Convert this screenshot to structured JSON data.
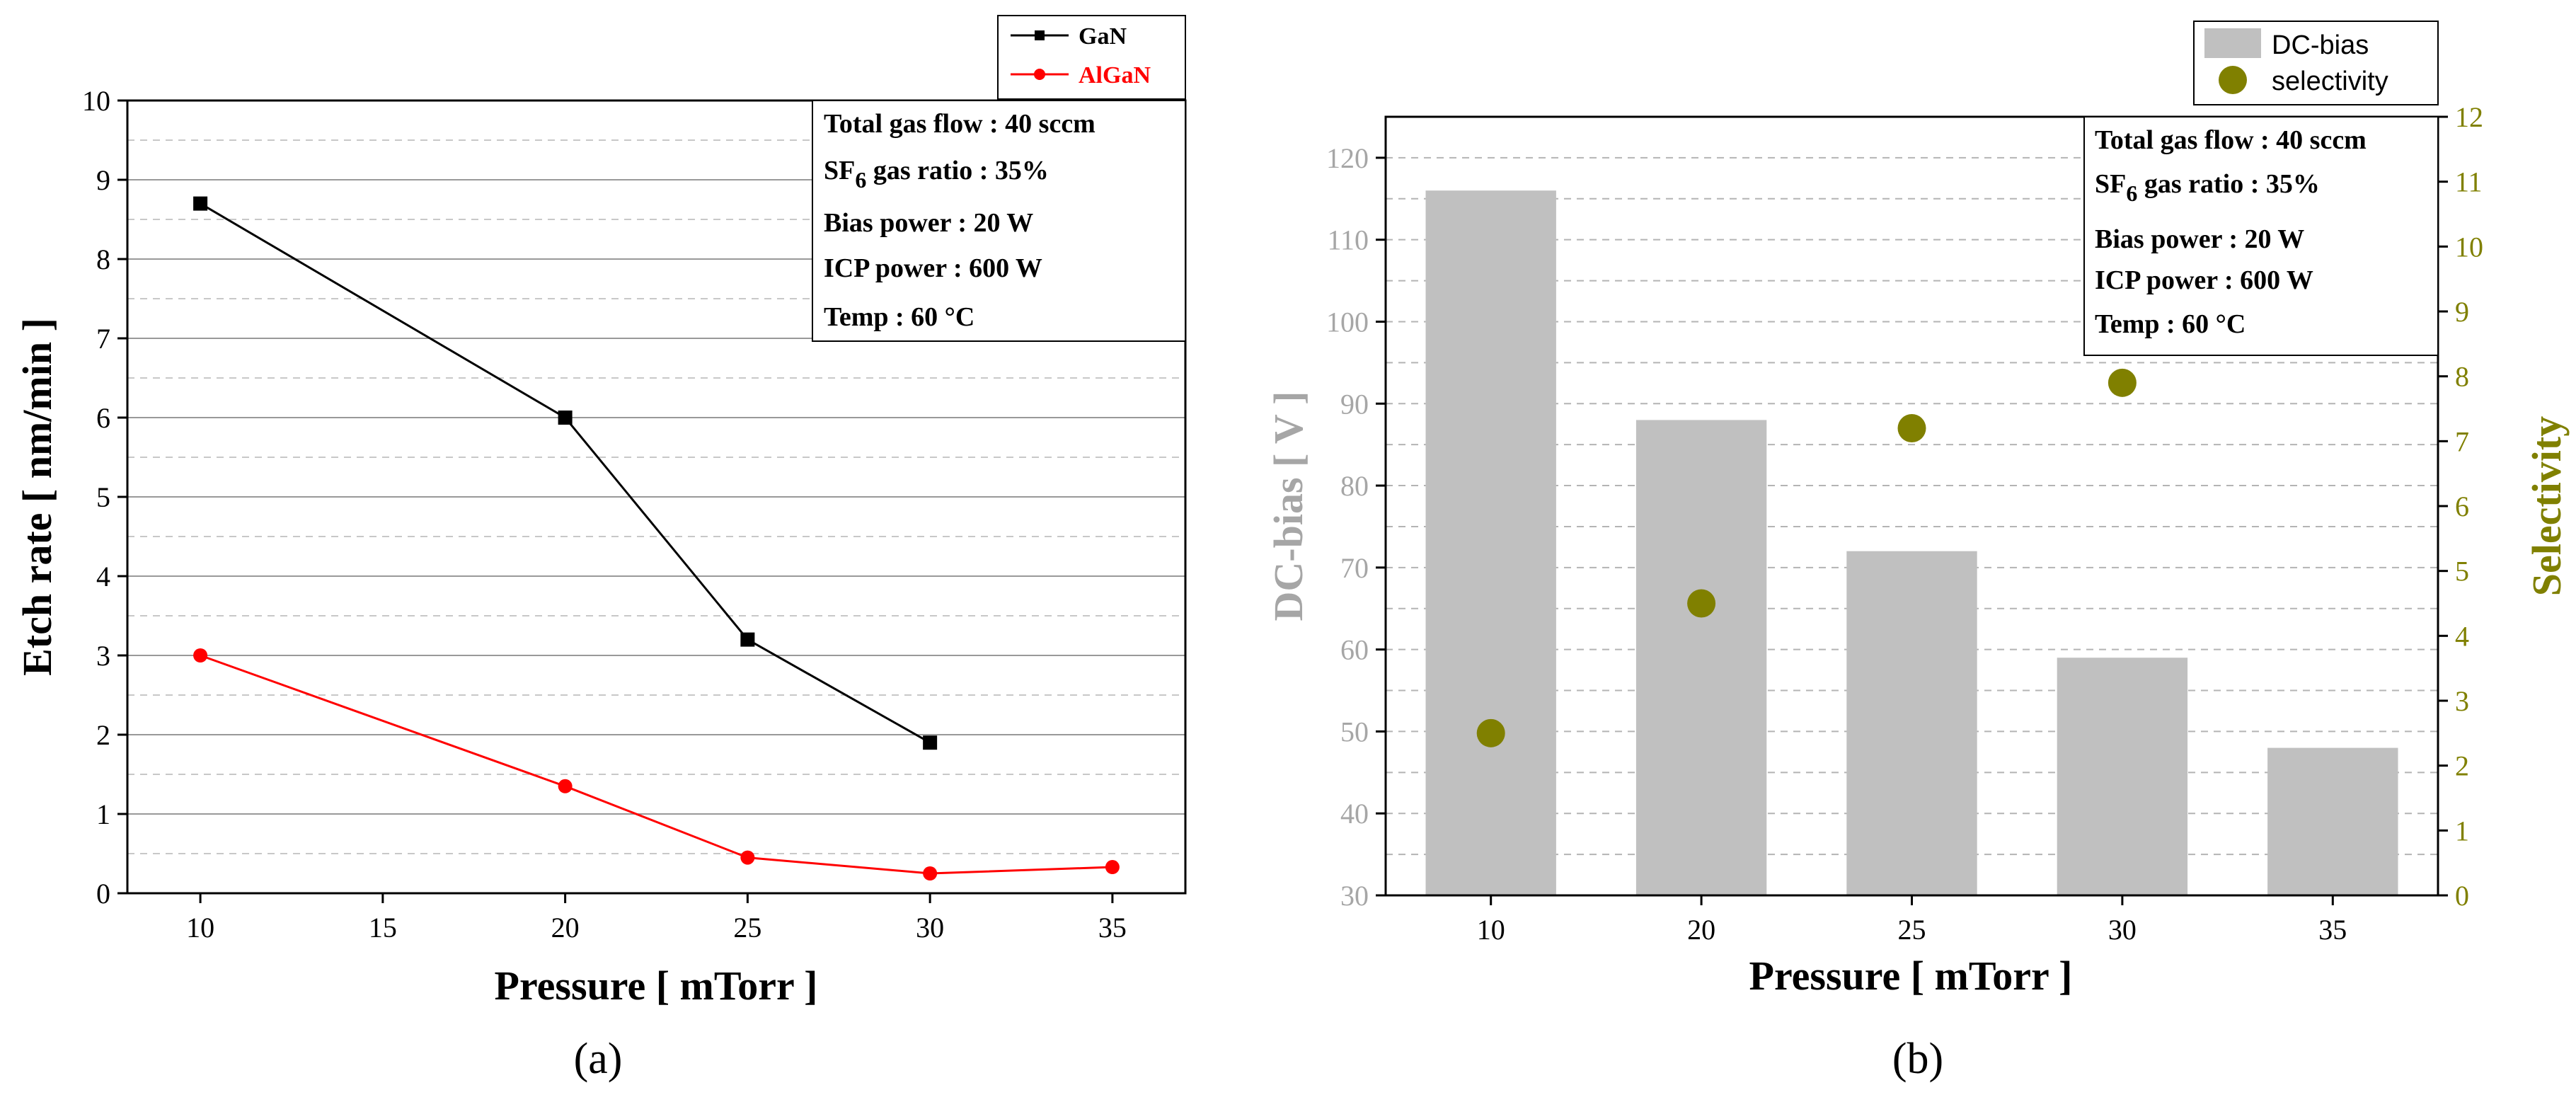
{
  "chart_data": [
    {
      "type": "line",
      "panel_label": "(a)",
      "xlabel": "Pressure [ mTorr ]",
      "ylabel": "Etch rate [ nm/min ]",
      "xlim": [
        8,
        37
      ],
      "ylim": [
        0,
        10
      ],
      "xticks": [
        "10",
        "15",
        "20",
        "25",
        "30",
        "35"
      ],
      "yticks": [
        "0",
        "1",
        "2",
        "3",
        "4",
        "5",
        "6",
        "7",
        "8",
        "9",
        "10"
      ],
      "grid": true,
      "legend_position": "top-right, outside",
      "series": [
        {
          "name": "GaN",
          "color": "#000000",
          "marker": "square",
          "x": [
            10,
            20,
            25,
            30
          ],
          "y": [
            8.7,
            6.0,
            3.2,
            1.9
          ]
        },
        {
          "name": "AlGaN",
          "color": "#ff0000",
          "marker": "circle",
          "x": [
            10,
            20,
            25,
            30,
            35
          ],
          "y": [
            3.0,
            1.35,
            0.45,
            0.25,
            0.33
          ]
        }
      ],
      "annotation": {
        "line1": "Total gas flow : 40 sccm",
        "line2_pre": "SF",
        "line2_sub": "6",
        "line2_post": " gas ratio : 35%",
        "line3": "Bias power : 20 W",
        "line4": "ICP power : 600 W",
        "line5": "Temp : 60 °C"
      }
    },
    {
      "type": "bar",
      "panel_label": "(b)",
      "xlabel": "Pressure [ mTorr ]",
      "ylabel": "DC-bias [ V ]",
      "y2label": "Selectivity",
      "categories": [
        "10",
        "20",
        "25",
        "30",
        "35"
      ],
      "ylim": [
        30,
        125
      ],
      "y2lim": [
        0,
        12
      ],
      "yticks": [
        "30",
        "40",
        "50",
        "60",
        "70",
        "80",
        "90",
        "100",
        "110",
        "120"
      ],
      "y2ticks": [
        "0",
        "1",
        "2",
        "3",
        "4",
        "5",
        "6",
        "7",
        "8",
        "9",
        "10",
        "11",
        "12"
      ],
      "grid": true,
      "legend_position": "top-right, outside",
      "series": [
        {
          "name": "DC-bias",
          "kind": "bar",
          "axis": "left",
          "color": "#c0c0c0",
          "values": [
            116,
            88,
            72,
            59,
            48
          ]
        },
        {
          "name": "selectivity",
          "kind": "scatter",
          "axis": "right",
          "color": "#808000",
          "categories": [
            "10",
            "20",
            "25",
            "30"
          ],
          "values": [
            2.5,
            4.5,
            7.2,
            7.9
          ]
        }
      ],
      "annotation": {
        "line1": "Total gas flow : 40 sccm",
        "line2_pre": "SF",
        "line2_sub": "6",
        "line2_post": " gas ratio : 35%",
        "line3": "Bias power : 20 W",
        "line4": "ICP power : 600 W",
        "line5": "Temp : 60 °C"
      }
    }
  ]
}
